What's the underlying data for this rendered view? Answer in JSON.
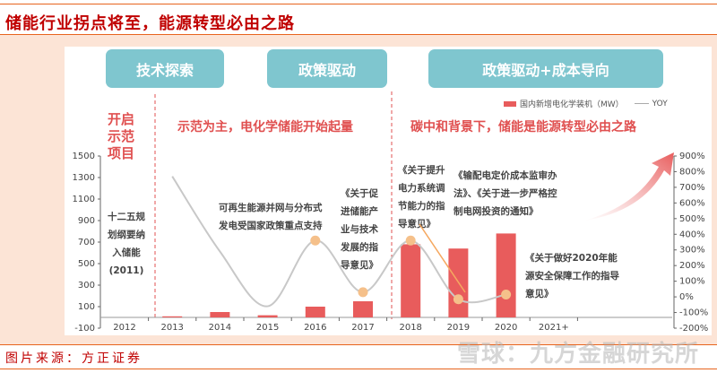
{
  "header": {
    "title": "储能行业拐点将至，能源转型必由之路"
  },
  "footer": {
    "source": "图片来源：方正证券",
    "watermark": "雪球：九方金融研究所"
  },
  "phases": [
    "技术探索",
    "政策驱动",
    "政策驱动+成本导向"
  ],
  "phase_captions": [
    "开启示范项目",
    "示范为主，电化学储能开始起量",
    "碳中和背景下，储能是能源转型必由之路"
  ],
  "annotations": {
    "a2011": "十二五规划纲要纳入储能(2011)",
    "a2016": "可再生能源并网与分布式发电受国家政策重点支持",
    "a2017": "《关于促进储能产业与技术发展的指导意见》",
    "a2018": "《关于提升电力系统调节能力的指导意见》",
    "a2019": "《输配电定价成本监审办法》、《关于进一步严格控制电网投资的通知》",
    "a2020": "《关于做好2020年能源安全保障工作的指导意见》"
  },
  "colors": {
    "bar": "#e85c5c",
    "line": "#c8c8c8",
    "marker": "#f5c08a",
    "phase": "#7fc6cf",
    "accent": "#e05050"
  },
  "chart_data": {
    "type": "bar+line",
    "categories": [
      "2012",
      "2013",
      "2014",
      "2015",
      "2016",
      "2017",
      "2018",
      "2019",
      "2020",
      "2021+"
    ],
    "series": [
      {
        "name": "国内新增电化学装机（MW）",
        "type": "bar",
        "axis": "left",
        "values": [
          null,
          10,
          50,
          20,
          100,
          150,
          680,
          640,
          780,
          null
        ]
      },
      {
        "name": "YOY",
        "type": "line",
        "axis": "right",
        "unit": "%",
        "values": [
          null,
          770,
          290,
          -60,
          360,
          30,
          360,
          -15,
          15,
          null
        ],
        "markers": [
          "2016",
          "2017",
          "2018",
          "2019",
          "2020"
        ]
      }
    ],
    "left_axis": {
      "ylim": [
        -100,
        1500
      ],
      "ticks": [
        -100,
        100,
        300,
        500,
        700,
        900,
        1100,
        1300,
        1500
      ]
    },
    "right_axis": {
      "ylim": [
        -200,
        900
      ],
      "ticks": [
        "-200%",
        "-100%",
        "0%",
        "100%",
        "200%",
        "300%",
        "400%",
        "500%",
        "600%",
        "700%",
        "800%",
        "900%"
      ]
    },
    "legend": "top-right",
    "grid": false
  }
}
